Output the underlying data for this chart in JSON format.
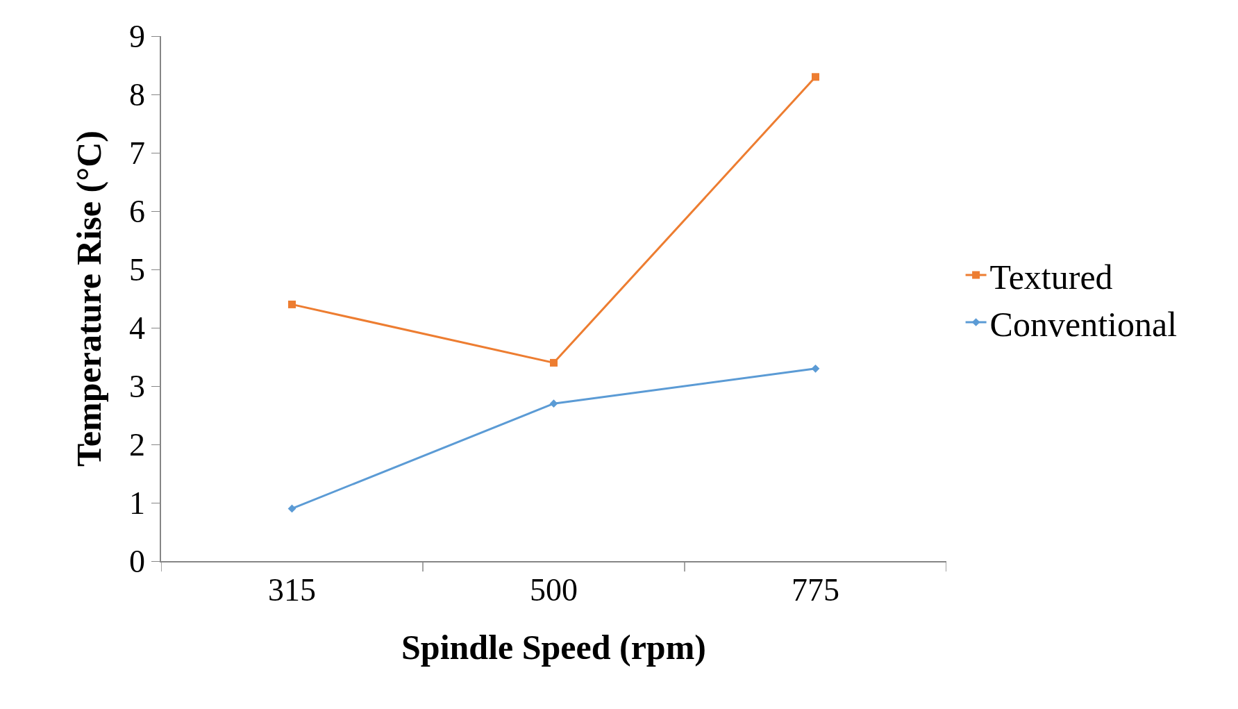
{
  "chart_data": {
    "type": "line",
    "xlabel": "Spindle Speed (rpm)",
    "ylabel": "Temperature Rise (°C)",
    "categories": [
      "315",
      "500",
      "775"
    ],
    "series": [
      {
        "name": "Textured",
        "color": "#ed7d31",
        "values": [
          4.4,
          3.4,
          8.3
        ],
        "marker": "square"
      },
      {
        "name": "Conventional",
        "color": "#5b9bd5",
        "values": [
          0.9,
          2.7,
          3.3
        ],
        "marker": "diamond"
      }
    ],
    "ylim": [
      0,
      9
    ],
    "yticks": [
      0,
      1,
      2,
      3,
      4,
      5,
      6,
      7,
      8,
      9
    ],
    "legend": "right",
    "line_style": "solid"
  }
}
